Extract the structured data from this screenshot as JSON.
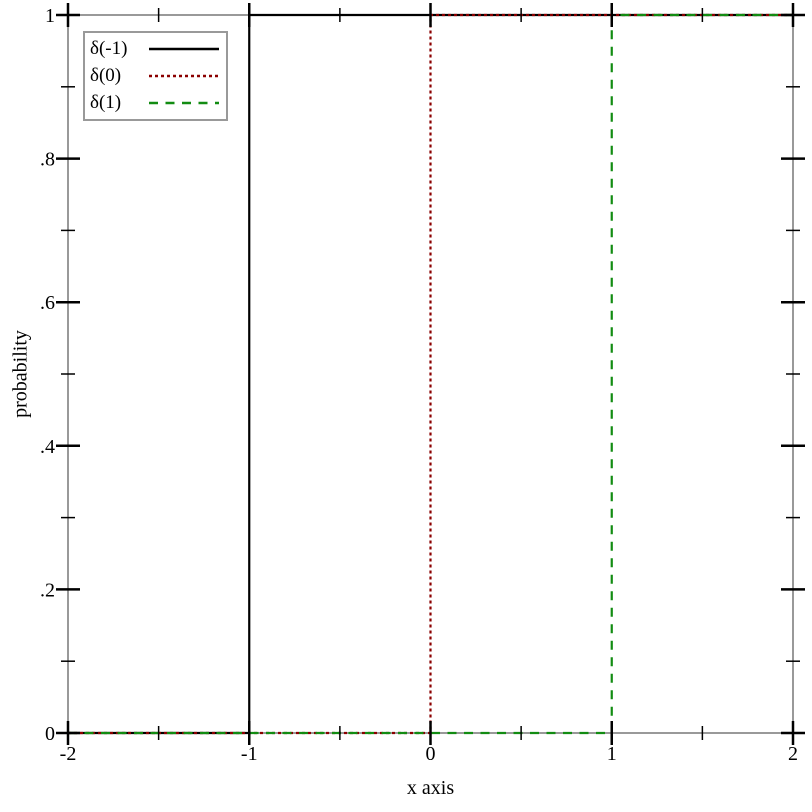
{
  "chart_data": {
    "type": "line",
    "subtype": "step-cdf",
    "title": "",
    "xlabel": "x axis",
    "ylabel": "probability",
    "xlim": [
      -2,
      2
    ],
    "ylim": [
      0,
      1
    ],
    "grid": false,
    "legend_position": "top-left",
    "frame_color": "#999999",
    "tick_color": "#000000",
    "x_major_ticks": [
      -2,
      -1,
      0,
      1,
      2
    ],
    "x_tick_labels": [
      "-2",
      "-1",
      "0",
      "1",
      "2"
    ],
    "x_minor_ticks": [
      -1.5,
      -0.5,
      0.5,
      1.5
    ],
    "y_major_ticks": [
      0,
      0.2,
      0.4,
      0.6,
      0.8,
      1
    ],
    "y_tick_labels": [
      "0",
      ".2",
      ".4",
      ".6",
      ".8",
      "1"
    ],
    "y_minor_ticks": [
      0.1,
      0.3,
      0.5,
      0.7,
      0.9
    ],
    "series": [
      {
        "name": "δ(-1)",
        "color": "#000000",
        "style": "solid",
        "points": [
          [
            -2,
            0
          ],
          [
            -1,
            0
          ],
          [
            -1,
            1
          ],
          [
            2,
            1
          ]
        ]
      },
      {
        "name": "δ(0)",
        "color": "#8b0000",
        "style": "dotted",
        "points": [
          [
            -2,
            0
          ],
          [
            0,
            0
          ],
          [
            0,
            1
          ],
          [
            2,
            1
          ]
        ]
      },
      {
        "name": "δ(1)",
        "color": "#128c12",
        "style": "dashed",
        "points": [
          [
            -2,
            0
          ],
          [
            1,
            0
          ],
          [
            1,
            1
          ],
          [
            2,
            1
          ]
        ]
      }
    ]
  }
}
